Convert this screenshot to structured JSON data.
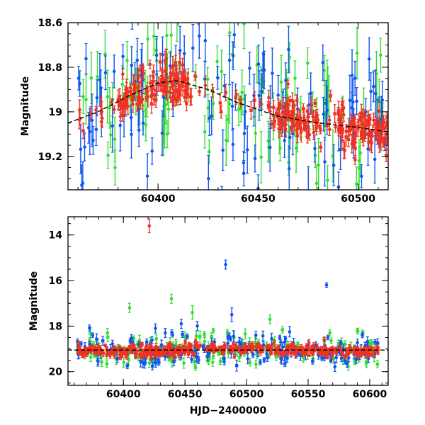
{
  "chart_data": [
    {
      "type": "scatter",
      "ylabel": "Magnitude",
      "xlim": [
        60355,
        60515
      ],
      "ylim": [
        18.6,
        19.35
      ],
      "y_inverted": true,
      "xticks": [
        60400,
        60450,
        60500
      ],
      "yticks": [
        18.6,
        18.8,
        19,
        19.2
      ],
      "ytick_labels": [
        "18.6",
        "18.8",
        "19",
        "19.2"
      ],
      "colors": {
        "g": "#33dd33",
        "b": "#1155ee",
        "r": "#ee3322"
      },
      "trend": {
        "x": [
          60355,
          60370,
          60385,
          60400,
          60410,
          60425,
          60440,
          60460,
          60480,
          60500,
          60515
        ],
        "y": [
          19.05,
          19.0,
          18.93,
          18.87,
          18.86,
          18.9,
          18.96,
          19.02,
          19.05,
          19.07,
          19.09
        ]
      }
    },
    {
      "type": "scatter",
      "ylabel": "Magnitude",
      "xlabel": "HJD−2400000",
      "xlim": [
        60355,
        60615
      ],
      "ylim": [
        13.2,
        20.6
      ],
      "y_inverted": true,
      "xticks": [
        60400,
        60450,
        60500,
        60550,
        60600
      ],
      "yticks": [
        14,
        16,
        18,
        20
      ],
      "ytick_labels": [
        "14",
        "16",
        "18",
        "20"
      ],
      "outliers": [
        {
          "x": 60421,
          "y": 13.6,
          "err": 0.3,
          "band": "r"
        },
        {
          "x": 60483,
          "y": 15.3,
          "err": 0.2,
          "band": "b"
        },
        {
          "x": 60565,
          "y": 16.2,
          "err": 0.1,
          "band": "b"
        },
        {
          "x": 60439,
          "y": 16.8,
          "err": 0.2,
          "band": "g"
        },
        {
          "x": 60405,
          "y": 17.2,
          "err": 0.2,
          "band": "g"
        },
        {
          "x": 60456,
          "y": 17.4,
          "err": 0.3,
          "band": "g"
        },
        {
          "x": 60488,
          "y": 17.5,
          "err": 0.3,
          "band": "b"
        },
        {
          "x": 60460,
          "y": 18.0,
          "err": 0.2,
          "band": "b"
        },
        {
          "x": 60447,
          "y": 17.9,
          "err": 0.2,
          "band": "b"
        },
        {
          "x": 60590,
          "y": 18.2,
          "err": 0.1,
          "band": "g"
        },
        {
          "x": 60519,
          "y": 17.7,
          "err": 0.2,
          "band": "g"
        },
        {
          "x": 60426,
          "y": 18.1,
          "err": 0.2,
          "band": "b"
        },
        {
          "x": 60434,
          "y": 18.3,
          "err": 0.2,
          "band": "b"
        },
        {
          "x": 60387,
          "y": 18.3,
          "err": 0.2,
          "band": "g"
        },
        {
          "x": 60375,
          "y": 18.4,
          "err": 0.1,
          "band": "b"
        },
        {
          "x": 60473,
          "y": 18.2,
          "err": 0.1,
          "band": "g"
        },
        {
          "x": 60527,
          "y": 18.5,
          "err": 0.1,
          "band": "b"
        },
        {
          "x": 60563,
          "y": 18.6,
          "err": 0.1,
          "band": "r"
        },
        {
          "x": 60566,
          "y": 18.5,
          "err": 0.1,
          "band": "b"
        }
      ]
    }
  ]
}
